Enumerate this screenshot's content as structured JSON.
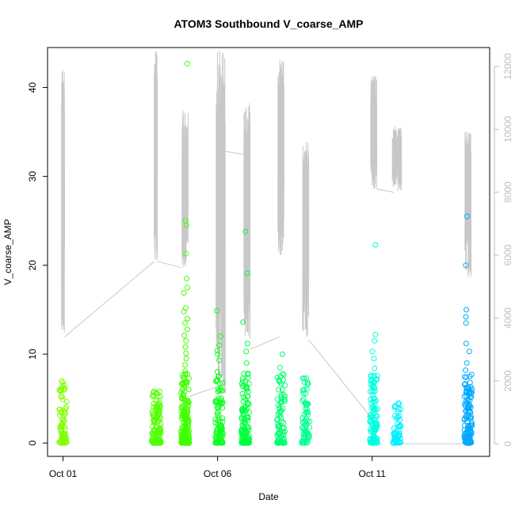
{
  "chart_data": {
    "type": "scatter",
    "title": "ATOM3 Southbound V_coarse_AMP",
    "xlabel": "Date",
    "ylabel": "V_coarse_AMP",
    "x_ticks": [
      "Oct 01",
      "Oct 06",
      "Oct 11"
    ],
    "xlim_days": [
      0.5,
      14.8
    ],
    "ylim": [
      -1.5,
      44.5
    ],
    "y_ticks": [
      0,
      10,
      20,
      30,
      40
    ],
    "y2lim": [
      -400,
      12600
    ],
    "y2_ticks": [
      0,
      2000,
      4000,
      6000,
      8000,
      10000,
      12000
    ],
    "grid": false,
    "scatter_series": [
      {
        "x": 1.0,
        "color": "#80ff00",
        "max": 7.0,
        "points": [
          7.0,
          6.1,
          5.9,
          5.2,
          4.9,
          3.5,
          3.1,
          2.8,
          2.5,
          2.2,
          1.9,
          1.6,
          1.3,
          1.0,
          0.7,
          0.4,
          0.1
        ]
      },
      {
        "x": 4.05,
        "color": "#50ff00",
        "max": 5.8,
        "points": [
          5.8,
          3.3,
          2.9,
          1.0,
          0.6,
          0.3,
          0.1
        ]
      },
      {
        "x": 4.0,
        "color": "#50ff00",
        "max": 5.8,
        "points": [
          5.8,
          3.1,
          0.9,
          0.4,
          0.1
        ]
      },
      {
        "x": 4.95,
        "color": "#40ff00",
        "max": 42.7,
        "points": [
          42.7,
          25.0,
          24.5,
          21.3,
          18.5,
          17.5,
          16.9,
          15.2,
          14.8,
          14.0,
          13.5,
          12.8,
          12.1,
          11.5,
          10.8,
          10.1,
          9.5,
          8.8,
          8.1,
          7.4,
          6.8,
          6.1,
          5.5,
          4.8,
          4.2,
          3.6,
          3.0,
          2.4,
          1.8,
          1.2,
          0.6,
          0.2
        ]
      },
      {
        "x": 6.05,
        "color": "#10ff20",
        "max": 14.9,
        "points": [
          14.9,
          12.0,
          11.0,
          10.4,
          10.0,
          9.3,
          8.0,
          6.7,
          5.8,
          5.0,
          4.2,
          3.5,
          2.8,
          2.1,
          1.5,
          0.9,
          0.4,
          0.1
        ]
      },
      {
        "x": 6.9,
        "color": "#00ff40",
        "max": 23.8,
        "points": [
          23.8,
          19.1,
          13.6,
          11.2,
          10.3,
          9.0,
          7.7,
          6.9,
          6.0,
          5.2,
          4.4,
          3.6,
          2.9,
          2.2,
          1.5,
          0.9,
          0.4,
          0.1
        ]
      },
      {
        "x": 8.05,
        "color": "#00ff70",
        "max": 10.0,
        "points": [
          10.0,
          8.5,
          7.0,
          6.0,
          5.4,
          4.7,
          3.9,
          3.1,
          2.4,
          1.7,
          1.1,
          0.5,
          0.1
        ]
      },
      {
        "x": 8.85,
        "color": "#00ff90",
        "max": 7.3,
        "points": [
          7.3,
          4.5,
          3.8,
          3.2,
          2.5,
          1.9,
          1.3,
          0.7,
          0.2
        ]
      },
      {
        "x": 11.05,
        "color": "#00ffe0",
        "max": 22.3,
        "points": [
          22.3,
          12.2,
          11.5,
          10.3,
          9.5,
          8.4,
          7.5,
          6.2,
          5.0,
          3.8,
          3.0,
          2.2,
          1.5,
          0.8,
          0.3,
          0.1
        ]
      },
      {
        "x": 11.8,
        "color": "#00f0ff",
        "max": 4.5,
        "points": [
          4.5,
          4.2,
          3.8,
          1.1,
          0.8,
          0.5,
          0.2
        ]
      },
      {
        "x": 14.1,
        "color": "#00a8ff",
        "max": 25.5,
        "points": [
          25.5,
          20.0,
          15.0,
          14.2,
          13.5,
          11.2,
          10.3,
          9.0,
          8.2,
          7.5,
          6.8,
          6.1,
          5.5,
          4.9,
          4.3,
          3.6,
          3.0,
          2.4,
          1.8,
          1.2,
          0.6,
          0.2
        ]
      }
    ],
    "count_series_bursts": [
      {
        "x0": 0.95,
        "x1": 1.05,
        "peak": 12000,
        "low": 3400
      },
      {
        "x0": 3.95,
        "x1": 4.05,
        "peak": 12500,
        "low": 5800
      },
      {
        "x0": 4.85,
        "x1": 5.05,
        "peak": 10600,
        "low": 5600
      },
      {
        "x0": 5.95,
        "x1": 6.25,
        "peak": 12600,
        "low": 1500
      },
      {
        "x0": 6.85,
        "x1": 7.05,
        "peak": 11000,
        "low": 3200
      },
      {
        "x0": 7.95,
        "x1": 8.15,
        "peak": 12200,
        "low": 6000
      },
      {
        "x0": 8.75,
        "x1": 8.95,
        "peak": 9700,
        "low": 3400
      },
      {
        "x0": 10.95,
        "x1": 11.15,
        "peak": 11700,
        "low": 8100
      },
      {
        "x0": 11.65,
        "x1": 11.95,
        "peak": 10100,
        "low": 8000
      },
      {
        "x0": 14.0,
        "x1": 14.2,
        "peak": 10000,
        "low": 5300
      }
    ]
  }
}
